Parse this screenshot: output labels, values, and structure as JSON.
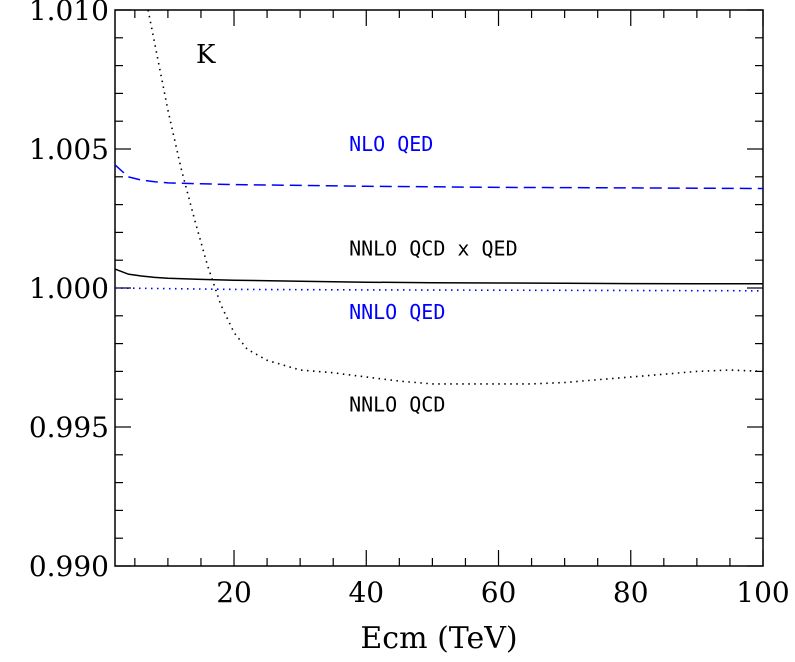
{
  "chart_data": {
    "type": "line",
    "title": "",
    "xlabel": "Ecm (TeV)",
    "ylabel": "",
    "xlim": [
      2,
      100
    ],
    "ylim": [
      0.99,
      1.01
    ],
    "x_ticks": [
      20,
      40,
      60,
      80,
      100
    ],
    "x_tick_labels": [
      "20",
      "40",
      "60",
      "80",
      "100"
    ],
    "y_ticks": [
      0.99,
      0.995,
      1.0,
      1.005,
      1.01
    ],
    "y_tick_labels": [
      "0.990",
      "0.995",
      "1.000",
      "1.005",
      "1.010"
    ],
    "grid": false,
    "legend": "none",
    "panel_label": "K",
    "series": [
      {
        "name": "NLO QED",
        "style": "dashed",
        "color": "#0000ff",
        "x": [
          2,
          4,
          6,
          8,
          10,
          15,
          20,
          30,
          40,
          50,
          60,
          70,
          80,
          90,
          100
        ],
        "y": [
          1.00443,
          1.004,
          1.00388,
          1.00382,
          1.00378,
          1.00375,
          1.00372,
          1.00369,
          1.00366,
          1.00364,
          1.00362,
          1.00361,
          1.0036,
          1.00359,
          1.00358
        ]
      },
      {
        "name": "NNLO QCD x QED",
        "style": "solid",
        "color": "#000000",
        "x": [
          2,
          4,
          6,
          8,
          10,
          15,
          20,
          30,
          40,
          50,
          60,
          70,
          80,
          90,
          100
        ],
        "y": [
          1.00068,
          1.0005,
          1.00043,
          1.00038,
          1.00035,
          1.00031,
          1.00028,
          1.00024,
          1.00021,
          1.00019,
          1.00018,
          1.00017,
          1.00016,
          1.00015,
          1.00015
        ]
      },
      {
        "name": "NNLO QED",
        "style": "dotted",
        "color": "#0000ff",
        "x": [
          2,
          20,
          40,
          60,
          80,
          100
        ],
        "y": [
          1.0,
          0.99995,
          0.99993,
          0.99992,
          0.99991,
          0.9999
        ]
      },
      {
        "name": "NNLO QCD",
        "style": "dotted",
        "color": "#000000",
        "x": [
          7,
          8,
          10,
          12,
          14,
          16,
          18,
          20,
          22,
          25,
          30,
          35,
          40,
          45,
          50,
          55,
          60,
          65,
          70,
          75,
          80,
          85,
          90,
          95,
          100
        ],
        "y": [
          1.01,
          1.0088,
          1.0064,
          1.0043,
          1.0025,
          1.0008,
          0.9994,
          0.9984,
          0.9978,
          0.9974,
          0.99705,
          0.99695,
          0.9968,
          0.99665,
          0.99655,
          0.99655,
          0.99655,
          0.99655,
          0.9966,
          0.9967,
          0.9968,
          0.9969,
          0.997,
          0.99705,
          0.997
        ]
      }
    ],
    "annotations": [
      {
        "text": "NLO QED",
        "x": 37.4,
        "y": 1.00493,
        "color": "#0000ff"
      },
      {
        "text": "NNLO QCD x QED",
        "x": 37.4,
        "y": 1.00117,
        "color": "#000000"
      },
      {
        "text": "NNLO QED",
        "x": 37.4,
        "y": 0.99888,
        "color": "#0000ff"
      },
      {
        "text": "NNLO QCD",
        "x": 37.4,
        "y": 0.99555,
        "color": "#000000"
      }
    ]
  }
}
